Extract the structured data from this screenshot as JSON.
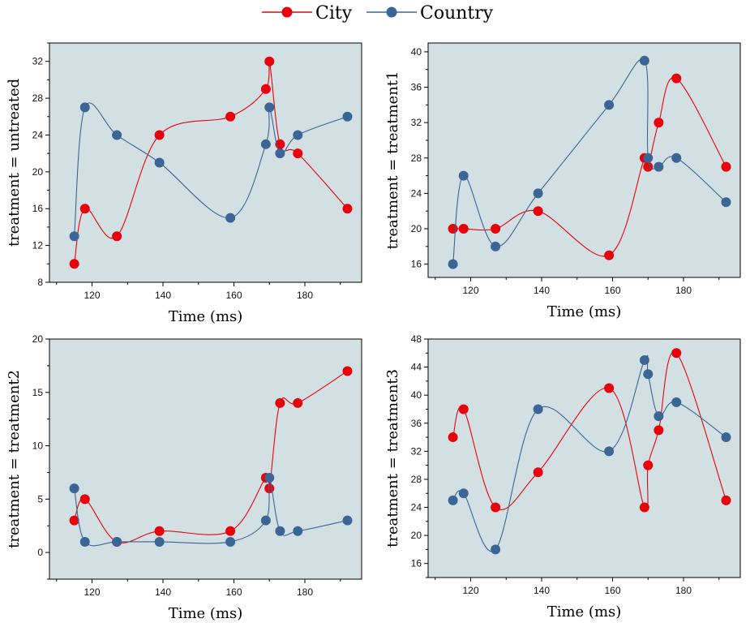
{
  "legend": {
    "items": [
      {
        "label": "City",
        "color": "#e8000b"
      },
      {
        "label": "Country",
        "color": "#3a6595"
      }
    ]
  },
  "colors": {
    "plot_bg": "#d3e0e3",
    "city": "#e8000b",
    "country": "#3a6595"
  },
  "chart_data": [
    {
      "type": "line",
      "xlabel": "Time (ms)",
      "ylabel": "treatment = untreated",
      "xlim": [
        108,
        196
      ],
      "ylim": [
        8,
        34
      ],
      "xticks": [
        120,
        140,
        160,
        180
      ],
      "yticks": [
        8,
        12,
        16,
        20,
        24,
        28,
        32
      ],
      "series": [
        {
          "name": "City",
          "x": [
            115,
            118,
            127,
            139,
            159,
            169,
            170,
            173,
            178,
            192
          ],
          "y": [
            10,
            16,
            13,
            24,
            26,
            29,
            32,
            23,
            22,
            16
          ]
        },
        {
          "name": "Country",
          "x": [
            115,
            118,
            127,
            139,
            159,
            169,
            170,
            173,
            178,
            192
          ],
          "y": [
            13,
            27,
            24,
            21,
            15,
            23,
            27,
            22,
            24,
            26
          ]
        }
      ]
    },
    {
      "type": "line",
      "xlabel": "Time (ms)",
      "ylabel": "treatment = treatment1",
      "xlim": [
        108,
        196
      ],
      "ylim": [
        14.5,
        41
      ],
      "xticks": [
        120,
        140,
        160,
        180
      ],
      "yticks": [
        16,
        20,
        24,
        28,
        32,
        36,
        40
      ],
      "series": [
        {
          "name": "City",
          "x": [
            115,
            118,
            127,
            139,
            159,
            169,
            170,
            173,
            178,
            192
          ],
          "y": [
            20,
            20,
            20,
            22,
            17,
            28,
            27,
            32,
            37,
            27
          ]
        },
        {
          "name": "Country",
          "x": [
            115,
            118,
            127,
            139,
            159,
            169,
            170,
            173,
            178,
            192
          ],
          "y": [
            16,
            26,
            18,
            24,
            34,
            39,
            28,
            27,
            28,
            23
          ]
        }
      ]
    },
    {
      "type": "line",
      "xlabel": "Time (ms)",
      "ylabel": "treatment = treatment2",
      "xlim": [
        108,
        196
      ],
      "ylim": [
        -2.5,
        20
      ],
      "xticks": [
        120,
        140,
        160,
        180
      ],
      "yticks": [
        0,
        5,
        10,
        15,
        20
      ],
      "series": [
        {
          "name": "City",
          "x": [
            115,
            118,
            127,
            139,
            159,
            169,
            170,
            173,
            178,
            192
          ],
          "y": [
            3,
            5,
            1,
            2,
            2,
            7,
            6,
            14,
            14,
            17
          ]
        },
        {
          "name": "Country",
          "x": [
            115,
            118,
            127,
            139,
            159,
            169,
            170,
            173,
            178,
            192
          ],
          "y": [
            6,
            1,
            1,
            1,
            1,
            3,
            7,
            2,
            2,
            3
          ]
        }
      ]
    },
    {
      "type": "line",
      "xlabel": "Time (ms)",
      "ylabel": "treatment = treatment3",
      "xlim": [
        108,
        196
      ],
      "ylim": [
        14,
        48
      ],
      "xticks": [
        120,
        140,
        160,
        180
      ],
      "yticks": [
        16,
        20,
        24,
        28,
        32,
        36,
        40,
        44,
        48
      ],
      "series": [
        {
          "name": "City",
          "x": [
            115,
            118,
            127,
            139,
            159,
            169,
            170,
            173,
            178,
            192
          ],
          "y": [
            34,
            38,
            24,
            29,
            41,
            24,
            30,
            35,
            46,
            25
          ]
        },
        {
          "name": "Country",
          "x": [
            115,
            118,
            127,
            139,
            159,
            169,
            170,
            173,
            178,
            192
          ],
          "y": [
            25,
            26,
            18,
            38,
            32,
            45,
            43,
            37,
            39,
            34
          ]
        }
      ]
    }
  ]
}
